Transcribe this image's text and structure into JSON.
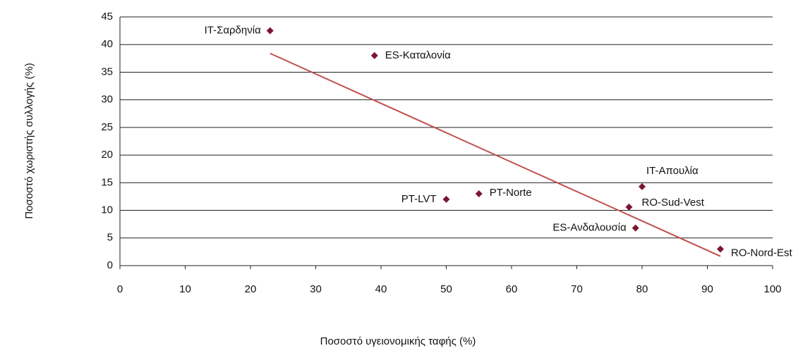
{
  "chart_data": {
    "type": "scatter",
    "xlabel": "Ποσοστό υγειονομικής ταφής (%)",
    "ylabel": "Ποσοστό χωριστής συλλογής (%)",
    "labels": [
      "IT-Σαρδηνία",
      "ES-Καταλονία",
      "PT-LVT",
      "PT-Norte",
      "IT-Απουλία",
      "RO-Sud-Vest",
      "ES-Ανδαλουσία",
      "RO-Nord-Est"
    ],
    "x": [
      23,
      39,
      50,
      55,
      80,
      78,
      79,
      92
    ],
    "values": [
      42.5,
      38,
      12,
      13,
      14.3,
      10.6,
      6.8,
      3
    ],
    "color": "#7b1730",
    "trendline": {
      "x": [
        23,
        92
      ],
      "values": [
        38.4,
        1.7
      ],
      "color": "#c0504d"
    },
    "xlim": [
      0,
      100
    ],
    "xticks": [
      0,
      10,
      20,
      30,
      40,
      50,
      60,
      70,
      80,
      90,
      100
    ],
    "ylim": [
      0,
      45
    ],
    "yticks": [
      0,
      5,
      10,
      15,
      20,
      25,
      30,
      35,
      40,
      45
    ],
    "grid": true
  }
}
